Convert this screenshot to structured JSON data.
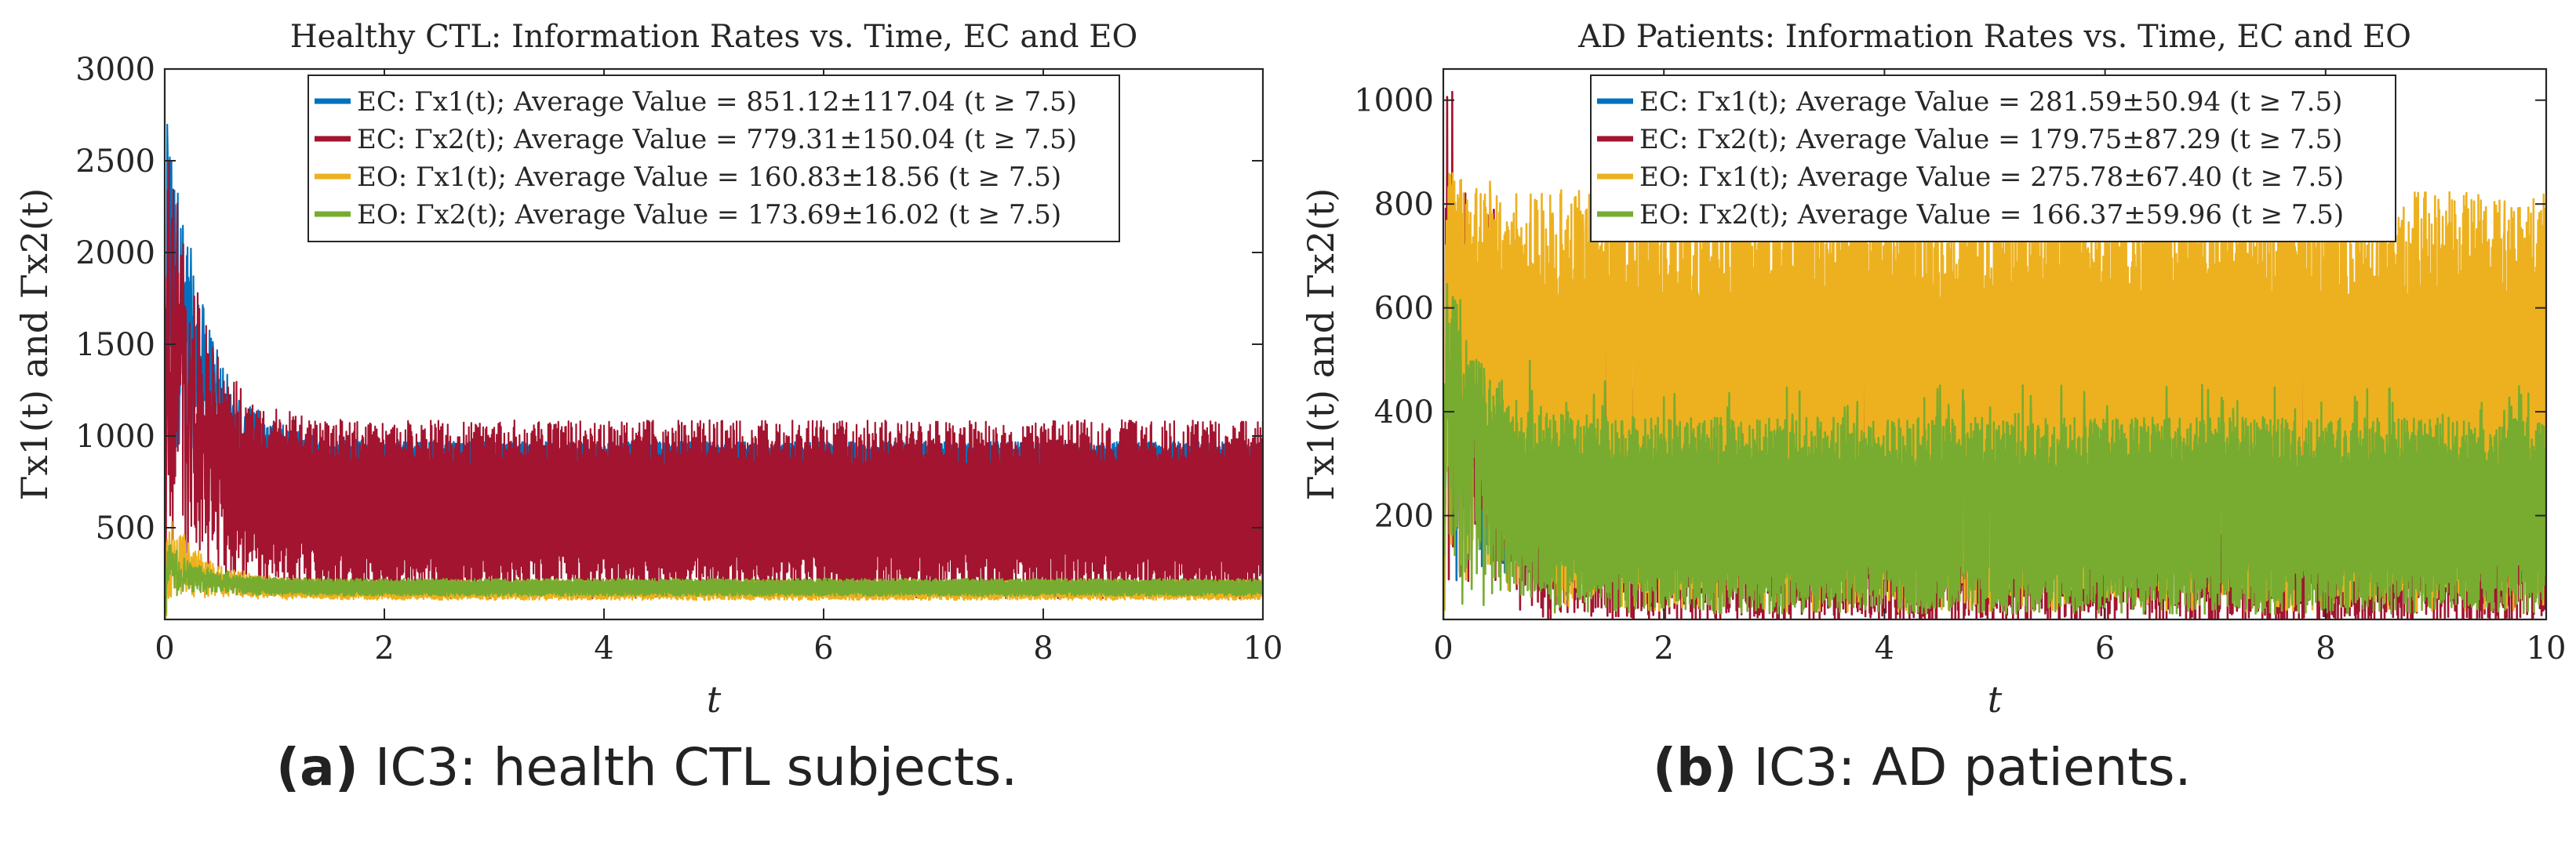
{
  "colors": {
    "ec_x1": "#0072BD",
    "ec_x2": "#A2142F",
    "eo_x1": "#EDB120",
    "eo_x2": "#77AC30",
    "axis": "#262626"
  },
  "captions": [
    {
      "letter": "(a)",
      "text": " IC3: health CTL subjects."
    },
    {
      "letter": "(b)",
      "text": " IC3: AD patients."
    }
  ],
  "chart_data": [
    {
      "type": "line",
      "title": "Healthy CTL: Information Rates vs. Time, EC and EO",
      "xlabel": "t",
      "ylabel": "Γx1(t) and Γx2(t)",
      "xlim": [
        0,
        10
      ],
      "ylim": [
        0,
        3000
      ],
      "xticks": [
        "0",
        "2",
        "4",
        "6",
        "8",
        "10"
      ],
      "yticks": [
        "500",
        "1000",
        "1500",
        "2000",
        "2500",
        "3000"
      ],
      "legend_position": "top-center",
      "series": [
        {
          "name": "EC: Γx1(t); Average Value = 851.12±117.04 (t ≥ 7.5)",
          "condition": "EC",
          "mean": 851.12,
          "sd": 117.04,
          "range": [
            780,
            940
          ],
          "peak": 2950
        },
        {
          "name": "EC: Γx2(t); Average Value = 779.31±150.04 (t ≥ 7.5)",
          "condition": "EC",
          "mean": 779.31,
          "sd": 150.04,
          "range": [
            240,
            960
          ],
          "peak": 2750
        },
        {
          "name": "EO: Γx1(t); Average Value = 160.83±18.56 (t ≥ 7.5)",
          "condition": "EO",
          "mean": 160.83,
          "sd": 18.56,
          "range": [
            120,
            200
          ],
          "peak": 620
        },
        {
          "name": "EO: Γx2(t); Average Value = 173.69±16.02 (t ≥ 7.5)",
          "condition": "EO",
          "mean": 173.69,
          "sd": 16.02,
          "range": [
            140,
            210
          ],
          "peak": 430
        }
      ]
    },
    {
      "type": "line",
      "title": "AD Patients: Information Rates vs. Time, EC and EO",
      "xlabel": "t",
      "ylabel": "Γx1(t) and Γx2(t)",
      "xlim": [
        0,
        10
      ],
      "ylim": [
        0,
        1060
      ],
      "xticks": [
        "0",
        "2",
        "4",
        "6",
        "8",
        "10"
      ],
      "yticks": [
        "200",
        "400",
        "600",
        "800",
        "1000"
      ],
      "legend_position": "top-center",
      "series": [
        {
          "name": "EC: Γx1(t); Average Value = 281.59±50.94 (t ≥ 7.5)",
          "condition": "EC",
          "mean": 281.59,
          "sd": 50.94,
          "range": [
            120,
            420
          ],
          "peak": 760
        },
        {
          "name": "EC: Γx2(t); Average Value = 179.75±87.29 (t ≥ 7.5)",
          "condition": "EC",
          "mean": 179.75,
          "sd": 87.29,
          "range": [
            50,
            420
          ],
          "peak": 1050
        },
        {
          "name": "EO: Γx1(t); Average Value = 275.78±67.40 (t ≥ 7.5)",
          "condition": "EO",
          "mean": 275.78,
          "sd": 67.4,
          "range": [
            120,
            720
          ],
          "peak": 900
        },
        {
          "name": "EO: Γx2(t); Average Value = 166.37±59.96 (t ≥ 7.5)",
          "condition": "EO",
          "mean": 166.37,
          "sd": 59.96,
          "range": [
            60,
            340
          ],
          "peak": 720
        }
      ]
    }
  ]
}
